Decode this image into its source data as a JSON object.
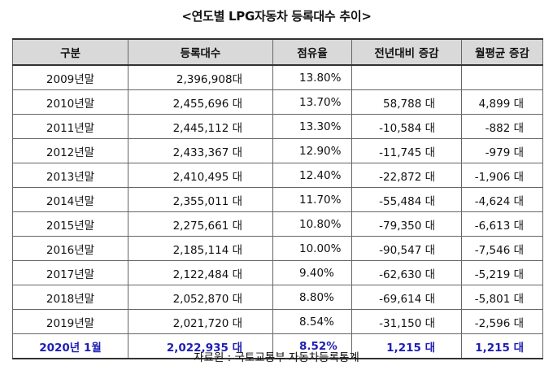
{
  "title": "<연도별 LPG자동차 등록대수 추이>",
  "table": {
    "headers": [
      "구분",
      "등록대수",
      "점유율",
      "전년대비 증감",
      "월평균 증감"
    ],
    "rows": [
      {
        "year": "2009년말",
        "count": "2,396,908대",
        "share": "13.80%",
        "yoy": "",
        "monthly": ""
      },
      {
        "year": "2010년말",
        "count": "2,455,696 대",
        "share": "13.70%",
        "yoy": "58,788 대",
        "monthly": "4,899 대"
      },
      {
        "year": "2011년말",
        "count": "2,445,112 대",
        "share": "13.30%",
        "yoy": "-10,584 대",
        "monthly": "-882 대"
      },
      {
        "year": "2012년말",
        "count": "2,433,367 대",
        "share": "12.90%",
        "yoy": "-11,745 대",
        "monthly": "-979 대"
      },
      {
        "year": "2013년말",
        "count": "2,410,495 대",
        "share": "12.40%",
        "yoy": "-22,872 대",
        "monthly": "-1,906 대"
      },
      {
        "year": "2014년말",
        "count": "2,355,011 대",
        "share": "11.70%",
        "yoy": "-55,484 대",
        "monthly": "-4,624 대"
      },
      {
        "year": "2015년말",
        "count": "2,275,661 대",
        "share": "10.80%",
        "yoy": "-79,350 대",
        "monthly": "-6,613 대"
      },
      {
        "year": "2016년말",
        "count": "2,185,114 대",
        "share": "10.00%",
        "yoy": "-90,547 대",
        "monthly": "-7,546 대"
      },
      {
        "year": "2017년말",
        "count": "2,122,484 대",
        "share": "9.40%",
        "yoy": "-62,630 대",
        "monthly": "-5,219 대"
      },
      {
        "year": "2018년말",
        "count": "2,052,870 대",
        "share": "8.80%",
        "yoy": "-69,614 대",
        "monthly": "-5,801 대"
      },
      {
        "year": "2019년말",
        "count": "2,021,720 대",
        "share": "8.54%",
        "yoy": "-31,150 대",
        "monthly": "-2,596 대"
      }
    ],
    "highlight_row": {
      "year": "2020년 1월",
      "count": "2,022,935 대",
      "share": "8.52%",
      "yoy": "1,215 대",
      "monthly": "1,215 대"
    }
  },
  "source": "자료원 : 국토교통부 자동차등록통계",
  "colors": {
    "header_bg": "#d9d9d9",
    "highlight_text": "#1f1fb4",
    "border": "#666666"
  }
}
